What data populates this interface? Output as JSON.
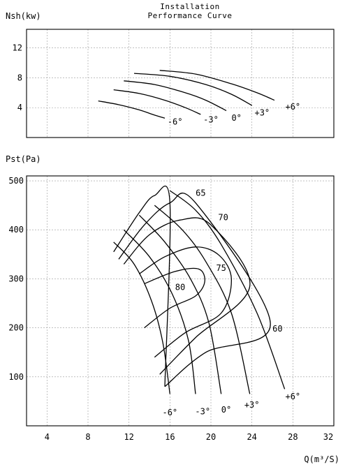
{
  "title_line1": "Installation",
  "title_line2": "Performance Curve",
  "chart_data": [
    {
      "type": "line",
      "name": "power",
      "ylabel": "Nsh(kw)",
      "xlim": [
        2,
        32
      ],
      "ylim": [
        0,
        14.5
      ],
      "yticks": [
        4,
        8,
        12
      ],
      "grid": true,
      "series": [
        {
          "name": "-6°",
          "label_at": [
            16.5,
            2.1
          ],
          "points": [
            [
              9.0,
              4.9
            ],
            [
              11.0,
              4.4
            ],
            [
              13.0,
              3.7
            ],
            [
              14.5,
              3.0
            ],
            [
              15.5,
              2.6
            ]
          ]
        },
        {
          "name": "-3°",
          "label_at": [
            20.0,
            2.4
          ],
          "points": [
            [
              10.5,
              6.4
            ],
            [
              13.0,
              5.9
            ],
            [
              15.5,
              5.0
            ],
            [
              17.5,
              4.0
            ],
            [
              19.0,
              3.1
            ]
          ]
        },
        {
          "name": "0°",
          "label_at": [
            22.5,
            2.6
          ],
          "points": [
            [
              11.5,
              7.6
            ],
            [
              14.5,
              7.1
            ],
            [
              17.5,
              6.0
            ],
            [
              19.5,
              5.0
            ],
            [
              21.5,
              3.6
            ]
          ]
        },
        {
          "name": "+3°",
          "label_at": [
            25.0,
            3.3
          ],
          "points": [
            [
              12.5,
              8.6
            ],
            [
              16.0,
              8.2
            ],
            [
              19.5,
              7.1
            ],
            [
              22.0,
              5.8
            ],
            [
              24.0,
              4.3
            ]
          ]
        },
        {
          "name": "+6°",
          "label_at": [
            28.0,
            4.1
          ],
          "points": [
            [
              15.0,
              9.0
            ],
            [
              18.5,
              8.5
            ],
            [
              22.0,
              7.2
            ],
            [
              24.5,
              6.0
            ],
            [
              26.2,
              5.0
            ]
          ]
        }
      ]
    },
    {
      "type": "line",
      "name": "pressure",
      "ylabel": "Pst(Pa)",
      "xlabel": "Q(m³/S)",
      "xlim": [
        2,
        32
      ],
      "ylim": [
        0,
        510
      ],
      "xticks": [
        4,
        8,
        12,
        16,
        20,
        24,
        28,
        32
      ],
      "yticks": [
        100,
        200,
        300,
        400,
        500
      ],
      "grid": true,
      "blade_angle_curves": [
        {
          "name": "-6°",
          "label_at": [
            16.0,
            27
          ],
          "points": [
            [
              10.5,
              375
            ],
            [
              12.5,
              330
            ],
            [
              14.2,
              255
            ],
            [
              15.3,
              170
            ],
            [
              16.0,
              65
            ]
          ]
        },
        {
          "name": "-3°",
          "label_at": [
            19.2,
            29
          ],
          "points": [
            [
              11.5,
              400
            ],
            [
              14.0,
              345
            ],
            [
              16.2,
              270
            ],
            [
              17.8,
              175
            ],
            [
              18.5,
              65
            ]
          ]
        },
        {
          "name": "0°",
          "label_at": [
            21.5,
            33
          ],
          "points": [
            [
              13.0,
              430
            ],
            [
              15.5,
              375
            ],
            [
              18.0,
              300
            ],
            [
              19.8,
              210
            ],
            [
              21.0,
              65
            ]
          ]
        },
        {
          "name": "+3°",
          "label_at": [
            24.0,
            43
          ],
          "points": [
            [
              14.5,
              450
            ],
            [
              17.2,
              400
            ],
            [
              19.5,
              335
            ],
            [
              22.0,
              230
            ],
            [
              23.8,
              65
            ]
          ]
        },
        {
          "name": "+6°",
          "label_at": [
            28.0,
            60
          ],
          "points": [
            [
              16.0,
              480
            ],
            [
              18.5,
              440
            ],
            [
              21.0,
              370
            ],
            [
              24.5,
              230
            ],
            [
              27.2,
              75
            ]
          ]
        }
      ],
      "efficiency_contours": [
        {
          "name": "60",
          "label_at": [
            26.5,
            198
          ],
          "points": [
            [
              10.5,
              355
            ],
            [
              13.0,
              435
            ],
            [
              14.5,
              470
            ],
            [
              16.0,
              455
            ],
            [
              15.5,
              80
            ]
          ]
        },
        {
          "name": "65",
          "label_at": [
            19.0,
            475
          ],
          "points": [
            [
              11.0,
              340
            ],
            [
              13.5,
              410
            ],
            [
              16.0,
              455
            ],
            [
              18.5,
              455
            ],
            [
              25.8,
              210
            ],
            [
              19.5,
              150
            ],
            [
              15.5,
              80
            ]
          ]
        },
        {
          "name": "70",
          "label_at": [
            21.2,
            425
          ],
          "points": [
            [
              11.5,
              330
            ],
            [
              14.0,
              390
            ],
            [
              17.0,
              420
            ],
            [
              20.0,
              410
            ],
            [
              23.8,
              285
            ],
            [
              18.5,
              180
            ],
            [
              15.0,
              105
            ]
          ]
        },
        {
          "name": "75",
          "label_at": [
            21.0,
            322
          ],
          "points": [
            [
              13.0,
              310
            ],
            [
              15.5,
              345
            ],
            [
              18.5,
              365
            ],
            [
              20.8,
              348
            ],
            [
              22.0,
              300
            ],
            [
              21.0,
              230
            ],
            [
              17.5,
              190
            ],
            [
              14.5,
              140
            ]
          ]
        },
        {
          "name": "80",
          "label_at": [
            17.0,
            283
          ],
          "points": [
            [
              13.5,
              290
            ],
            [
              16.5,
              315
            ],
            [
              18.8,
              320
            ],
            [
              19.4,
              295
            ],
            [
              18.5,
              265
            ],
            [
              16.0,
              240
            ],
            [
              13.5,
              200
            ]
          ]
        }
      ]
    }
  ]
}
